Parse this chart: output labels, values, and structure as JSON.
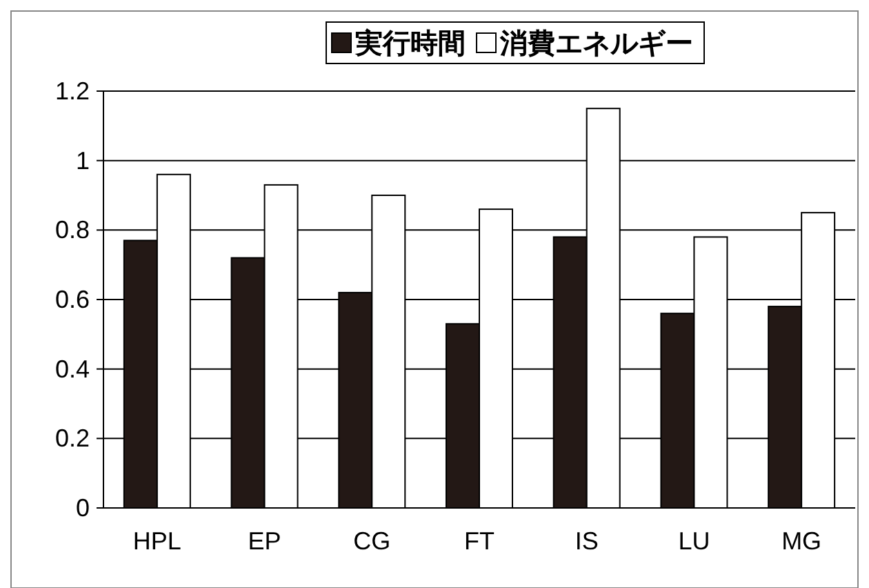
{
  "chart_data": {
    "type": "bar",
    "categories": [
      "HPL",
      "EP",
      "CG",
      "FT",
      "IS",
      "LU",
      "MG"
    ],
    "series": [
      {
        "name": "実行時間",
        "color": "#231815",
        "values": [
          0.77,
          0.72,
          0.62,
          0.53,
          0.78,
          0.56,
          0.58
        ]
      },
      {
        "name": "消費エネルギー",
        "color": "#ffffff",
        "values": [
          0.96,
          0.93,
          0.9,
          0.86,
          1.15,
          0.78,
          0.85
        ]
      }
    ],
    "ylim": [
      0,
      1.2
    ],
    "yticks": [
      0,
      0.2,
      0.4,
      0.6,
      0.8,
      1,
      1.2
    ],
    "grid": "y",
    "legend": "top"
  }
}
